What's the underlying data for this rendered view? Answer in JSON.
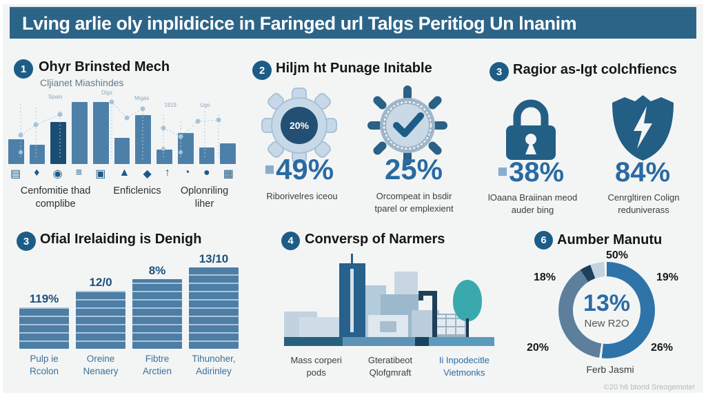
{
  "header": {
    "title": "Lving arlie oly inplidicice in Faringed url Talgs Peritiog Un lnanim"
  },
  "colors": {
    "header_bg": "#2c6488",
    "accent_blue": "#2a6aa2",
    "dark_navy": "#1b4e75",
    "bar_blue": "#4d80a9",
    "teal": "#3aa9ad"
  },
  "sections": {
    "s1": {
      "num": "1",
      "heading": "Ohyr Brinsted Mech",
      "subheading": "Cljianet Miashindes",
      "trend_labels": [
        "Spain",
        "Digs",
        "Migas",
        "1919",
        "Ugo"
      ],
      "mini_icons": [
        "▤",
        "♦",
        "◉",
        "≡",
        "▣",
        "▲",
        "◆",
        "↑",
        "◔",
        "●",
        "▦"
      ],
      "labels": [
        "Cenfomitie thad\ncomplibe",
        "Enficlenics",
        "Oplonriling\nliher"
      ]
    },
    "s2": {
      "num": "2",
      "heading": "Hiljm ht Punage Initable",
      "gear_value": "20%",
      "prefix_icon": "▦",
      "stats": [
        {
          "value": "49%",
          "caption": "Riborivelres iceou"
        },
        {
          "value": "25%",
          "caption": "Orcompeat in bsdir\ntparel or emplexient"
        }
      ]
    },
    "s3": {
      "num": "3",
      "heading": "Ragior as-Igt colchfiencs",
      "prefix_icon": "▦",
      "stats": [
        {
          "value": "38%",
          "caption": "lOaana Braiinan meod\nauder bing"
        },
        {
          "value": "84%",
          "caption": "Cenrgltiren Colign\nreduniverass"
        }
      ]
    },
    "s4": {
      "num": "3",
      "heading": "Ofial Irelaiding is Denigh"
    },
    "s5": {
      "num": "4",
      "heading": "Conversp of Narmers",
      "captions": [
        "Mass corperi\npods",
        "Gteratibeot\nQlofgmraft",
        "Ii Inpodecitle\nVietmonks"
      ]
    },
    "s6": {
      "num": "6",
      "heading": "Aumber Manutu",
      "caption": "Ferb Jasmi"
    }
  },
  "footer": {
    "credit": "©20 h6 btorid Sreogemote!"
  },
  "chart_data": [
    {
      "type": "bar",
      "title": "Ohyr Brinsted Mech — Cljianet Miashindes",
      "values": [
        35,
        27,
        60,
        88,
        88,
        37,
        70,
        21,
        44,
        24,
        29
      ],
      "highlight_index": 2,
      "ylabel": "",
      "xlabel": "",
      "note": "unlabeled axis, relative heights %; dotted trend overlay with labels",
      "overlay_labels": [
        "Spain",
        "Digs",
        "Migas",
        "1919",
        "Ugo"
      ]
    },
    {
      "type": "bar",
      "title": "Ofial Irelaiding is Denigh",
      "categories": [
        "Pulp ie\nRcolon",
        "Oreine\nNenaery",
        "Fibtre\nArctien",
        "Tihunoher,\nAdirinley"
      ],
      "labels": [
        "119%",
        "12/0",
        "8%",
        "13/10"
      ],
      "values": [
        60,
        84,
        101,
        118
      ],
      "note": "ascending striped bars, axis unlabeled, heights in px"
    },
    {
      "type": "pie",
      "title": "Aumber Manutu",
      "donut": true,
      "ring_labels": {
        "top": "50%",
        "left": "18%",
        "right": "19%",
        "bottom_left": "20%",
        "bottom_right": "26%"
      },
      "center_value": "13%",
      "center_label": "New R2O",
      "ring_segments": [
        {
          "name": "blue",
          "color": "#2e74a9",
          "deg": 186
        },
        {
          "name": "gap",
          "color": "#f3f5f5",
          "deg": 3
        },
        {
          "name": "slate",
          "color": "#5d7f9b",
          "deg": 138
        },
        {
          "name": "navy",
          "color": "#1e3f5e",
          "deg": 13
        },
        {
          "name": "light",
          "color": "#c3d2df",
          "deg": 17
        },
        {
          "name": "gap2",
          "color": "#f3f5f5",
          "deg": 3
        }
      ]
    }
  ]
}
